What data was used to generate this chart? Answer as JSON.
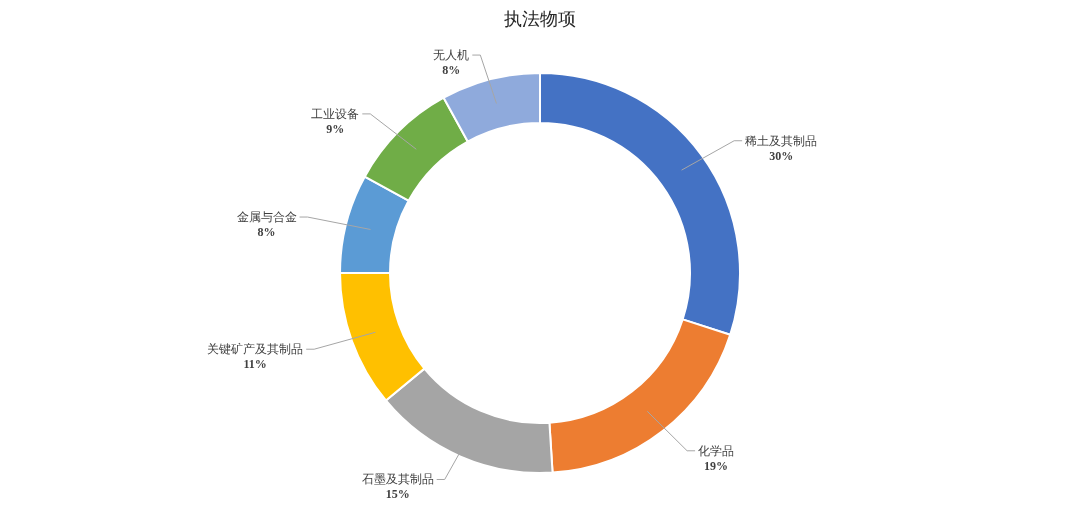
{
  "chart_data": {
    "type": "donut",
    "title": "执法物项",
    "categories": [
      "稀土及其制品",
      "化学品",
      "石墨及其制品",
      "关键矿产及其制品",
      "金属与合金",
      "工业设备",
      "无人机"
    ],
    "values": [
      30,
      19,
      15,
      11,
      8,
      9,
      8
    ],
    "colors": [
      "#4472c4",
      "#ed7d31",
      "#a5a5a5",
      "#ffc000",
      "#5b9bd5",
      "#70ad47",
      "#8faadc"
    ],
    "value_labels": [
      "30%",
      "19%",
      "15%",
      "11%",
      "8%",
      "9%",
      "8%"
    ]
  }
}
